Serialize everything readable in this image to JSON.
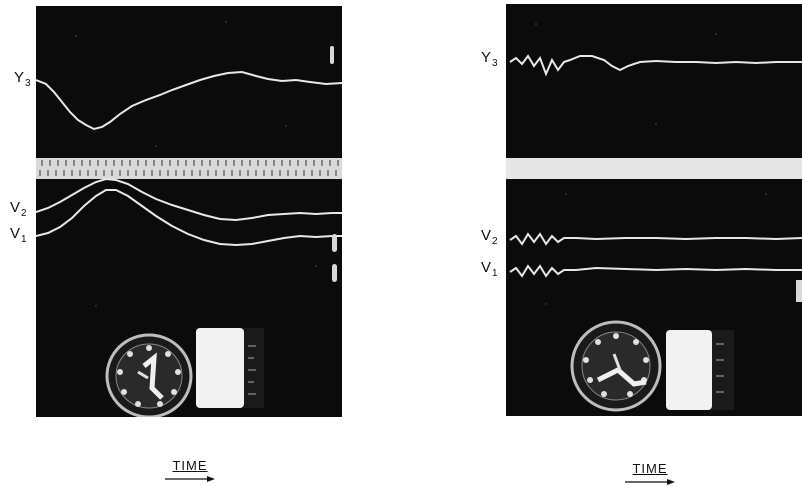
{
  "colors": {
    "film": "#0b0b0b",
    "trace": "#e8e8e8",
    "page": "#ffffff",
    "ink": "#111111"
  },
  "panels": [
    {
      "traces": [
        {
          "name": "Y",
          "sub": "3"
        },
        {
          "name": "V",
          "sub": "2"
        },
        {
          "name": "V",
          "sub": "1"
        }
      ],
      "axis_label": "TIME"
    },
    {
      "traces": [
        {
          "name": "Y",
          "sub": "3"
        },
        {
          "name": "V",
          "sub": "2"
        },
        {
          "name": "V",
          "sub": "1"
        }
      ],
      "axis_label": "TIME"
    }
  ],
  "icons": {
    "time_arrow": "right-arrow-icon",
    "dial": "clock-dial-icon"
  }
}
